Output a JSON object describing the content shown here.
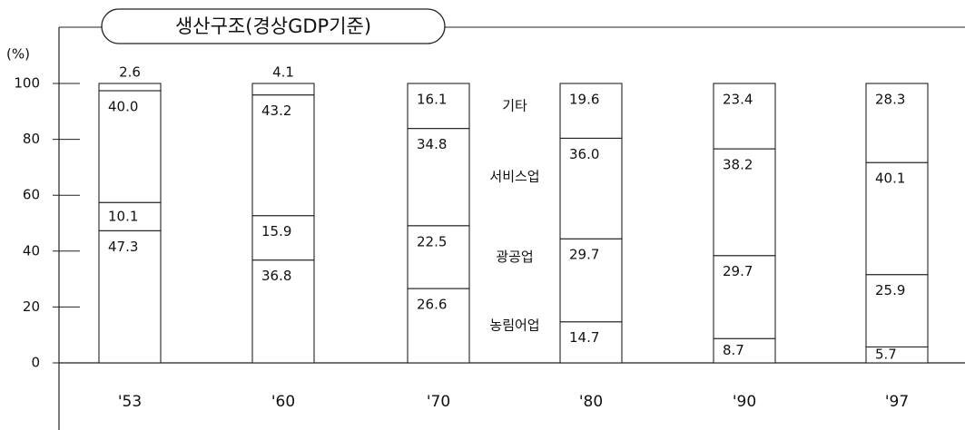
{
  "chart_data": {
    "type": "bar",
    "stacked": true,
    "title": "생산구조(경상GDP기준)",
    "y_label": "(%)",
    "categories": [
      "'53",
      "'60",
      "'70",
      "'80",
      "'90",
      "'97"
    ],
    "series": [
      {
        "name": "농림어업",
        "color": "#ffffff",
        "values": [
          47.3,
          36.8,
          26.6,
          14.7,
          8.7,
          5.7
        ]
      },
      {
        "name": "광공업",
        "color": "#ffffff",
        "values": [
          10.1,
          15.9,
          22.5,
          29.7,
          29.7,
          25.9
        ]
      },
      {
        "name": "서비스업",
        "color": "#ffffff",
        "values": [
          40.0,
          43.2,
          34.8,
          36.0,
          38.2,
          40.1
        ],
        "value_labels": [
          "40.0",
          "43.2",
          "34.8",
          "36.0",
          "38.2",
          "40.1"
        ]
      },
      {
        "name": "기타",
        "color": "#ffffff",
        "values": [
          2.6,
          4.1,
          16.1,
          19.6,
          23.4,
          28.3
        ]
      }
    ],
    "ylim": [
      0,
      100
    ],
    "yticks": [
      0,
      20,
      40,
      60,
      80,
      100
    ]
  }
}
